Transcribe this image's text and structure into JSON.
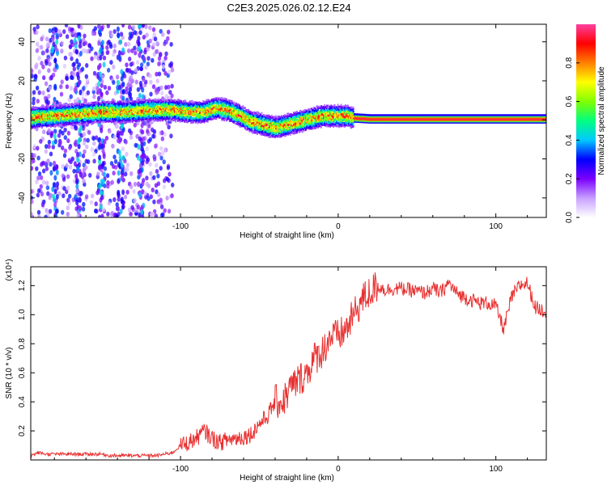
{
  "figure": {
    "title": "C2E3.2025.026.02.12.E24"
  },
  "chart_data": [
    {
      "type": "heatmap",
      "xlabel": "Height of straight line (km)",
      "ylabel": "Frequency (Hz)",
      "xlim": [
        -195,
        132
      ],
      "ylim": [
        -50,
        49
      ],
      "xticks": [
        -100,
        0,
        100
      ],
      "xtick_labels": [
        "-100",
        "0",
        "100"
      ],
      "yticks": [
        -40,
        -20,
        0,
        20,
        40
      ],
      "ytick_labels": [
        "-40",
        "-20",
        "0",
        "20",
        "40"
      ],
      "ridge": {
        "x": [
          -195,
          -180,
          -165,
          -150,
          -135,
          -120,
          -105,
          -95,
          -85,
          -78,
          -70,
          -62,
          -55,
          -50,
          -45,
          -40,
          -35,
          -30,
          -25,
          -20,
          -15,
          -10,
          -5,
          0,
          5,
          10,
          20,
          40,
          60,
          80,
          100,
          132
        ],
        "freq": [
          1,
          2,
          3,
          4,
          4,
          5,
          5,
          4,
          4,
          6,
          5,
          2,
          -1,
          -2,
          -3,
          -4,
          -3,
          -2,
          -1,
          0,
          1,
          2,
          2,
          2,
          2,
          1,
          0.5,
          0.5,
          0.5,
          0.5,
          0.5,
          0.5
        ]
      },
      "colorbar": {
        "label": "Normalized spectral amplitude",
        "range": [
          0.0,
          1.0
        ],
        "ticks": [
          0.0,
          0.2,
          0.4,
          0.6,
          0.8
        ],
        "tick_labels": [
          "0.0",
          "0.2",
          "0.4",
          "0.6",
          "0.8"
        ],
        "colors": [
          "#ffffff",
          "#c8a0ff",
          "#7a00ff",
          "#0000ff",
          "#00c8ff",
          "#00ff80",
          "#80ff00",
          "#ffff00",
          "#ff8000",
          "#ff0000",
          "#ff40a0"
        ]
      }
    },
    {
      "type": "line",
      "xlabel": "Height of straight line (km)",
      "ylabel": "SNR (10 * v/v)",
      "scale_label": "(x10⁴)",
      "xlim": [
        -195,
        132
      ],
      "ylim": [
        0.0,
        1.33
      ],
      "xticks": [
        -100,
        0,
        100
      ],
      "xtick_labels": [
        "-100",
        "0",
        "100"
      ],
      "yticks": [
        0.2,
        0.4,
        0.6,
        0.8,
        1.0,
        1.2
      ],
      "ytick_labels": [
        "0.2",
        "0.4",
        "0.6",
        "0.8",
        "1.0",
        "1.2"
      ],
      "line_color": "#e83030",
      "series": [
        {
          "x": [
            -195,
            -190,
            -185,
            -180,
            -175,
            -170,
            -165,
            -160,
            -155,
            -150,
            -145,
            -140,
            -135,
            -130,
            -125,
            -120,
            -115,
            -110,
            -105,
            -100,
            -95,
            -90,
            -85,
            -80,
            -75,
            -70,
            -65,
            -60,
            -55,
            -50,
            -45,
            -40,
            -35,
            -30,
            -25,
            -20,
            -15,
            -10,
            -5,
            0,
            5,
            10,
            15,
            20,
            25,
            30,
            35,
            40,
            45,
            50,
            55,
            60,
            65,
            70,
            75,
            80,
            85,
            90,
            95,
            100,
            105,
            110,
            115,
            120,
            125,
            132
          ],
          "y": [
            0.03,
            0.05,
            0.04,
            0.04,
            0.04,
            0.04,
            0.04,
            0.04,
            0.04,
            0.04,
            0.03,
            0.03,
            0.03,
            0.03,
            0.03,
            0.03,
            0.03,
            0.04,
            0.05,
            0.1,
            0.12,
            0.15,
            0.2,
            0.15,
            0.12,
            0.14,
            0.15,
            0.16,
            0.18,
            0.25,
            0.3,
            0.4,
            0.4,
            0.5,
            0.55,
            0.6,
            0.7,
            0.75,
            0.85,
            0.85,
            0.9,
            1.0,
            1.1,
            1.15,
            1.2,
            1.17,
            1.18,
            1.18,
            1.17,
            1.16,
            1.15,
            1.18,
            1.15,
            1.22,
            1.15,
            1.12,
            1.1,
            1.08,
            1.08,
            1.06,
            0.9,
            1.12,
            1.2,
            1.22,
            1.05,
            1.02
          ]
        }
      ]
    }
  ]
}
